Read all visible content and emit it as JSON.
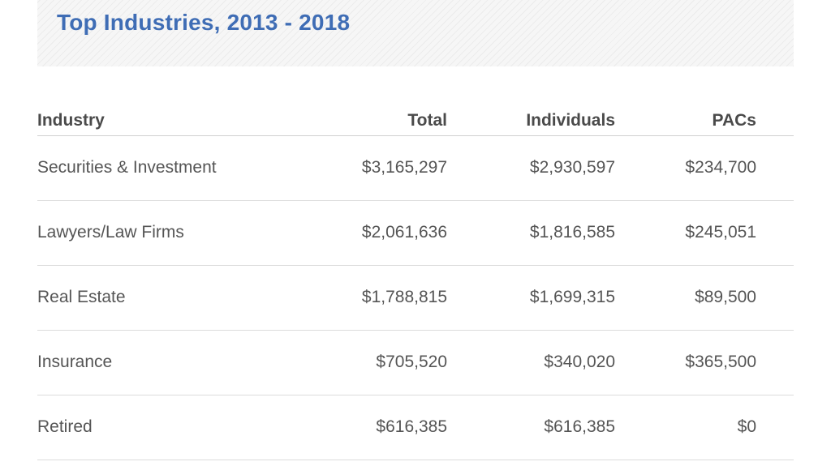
{
  "title": "Top Industries, 2013 - 2018",
  "table": {
    "headers": {
      "industry": "Industry",
      "total": "Total",
      "individuals": "Individuals",
      "pacs": "PACs"
    },
    "rows": [
      {
        "industry": "Securities & Investment",
        "total": "$3,165,297",
        "individuals": "$2,930,597",
        "pacs": "$234,700"
      },
      {
        "industry": "Lawyers/Law Firms",
        "total": "$2,061,636",
        "individuals": "$1,816,585",
        "pacs": "$245,051"
      },
      {
        "industry": "Real Estate",
        "total": "$1,788,815",
        "individuals": "$1,699,315",
        "pacs": "$89,500"
      },
      {
        "industry": "Insurance",
        "total": "$705,520",
        "individuals": "$340,020",
        "pacs": "$365,500"
      },
      {
        "industry": "Retired",
        "total": "$616,385",
        "individuals": "$616,385",
        "pacs": "$0"
      }
    ]
  },
  "colors": {
    "title": "#3f6db5",
    "text": "#4a4a4a",
    "divider": "#dcdcdc"
  }
}
